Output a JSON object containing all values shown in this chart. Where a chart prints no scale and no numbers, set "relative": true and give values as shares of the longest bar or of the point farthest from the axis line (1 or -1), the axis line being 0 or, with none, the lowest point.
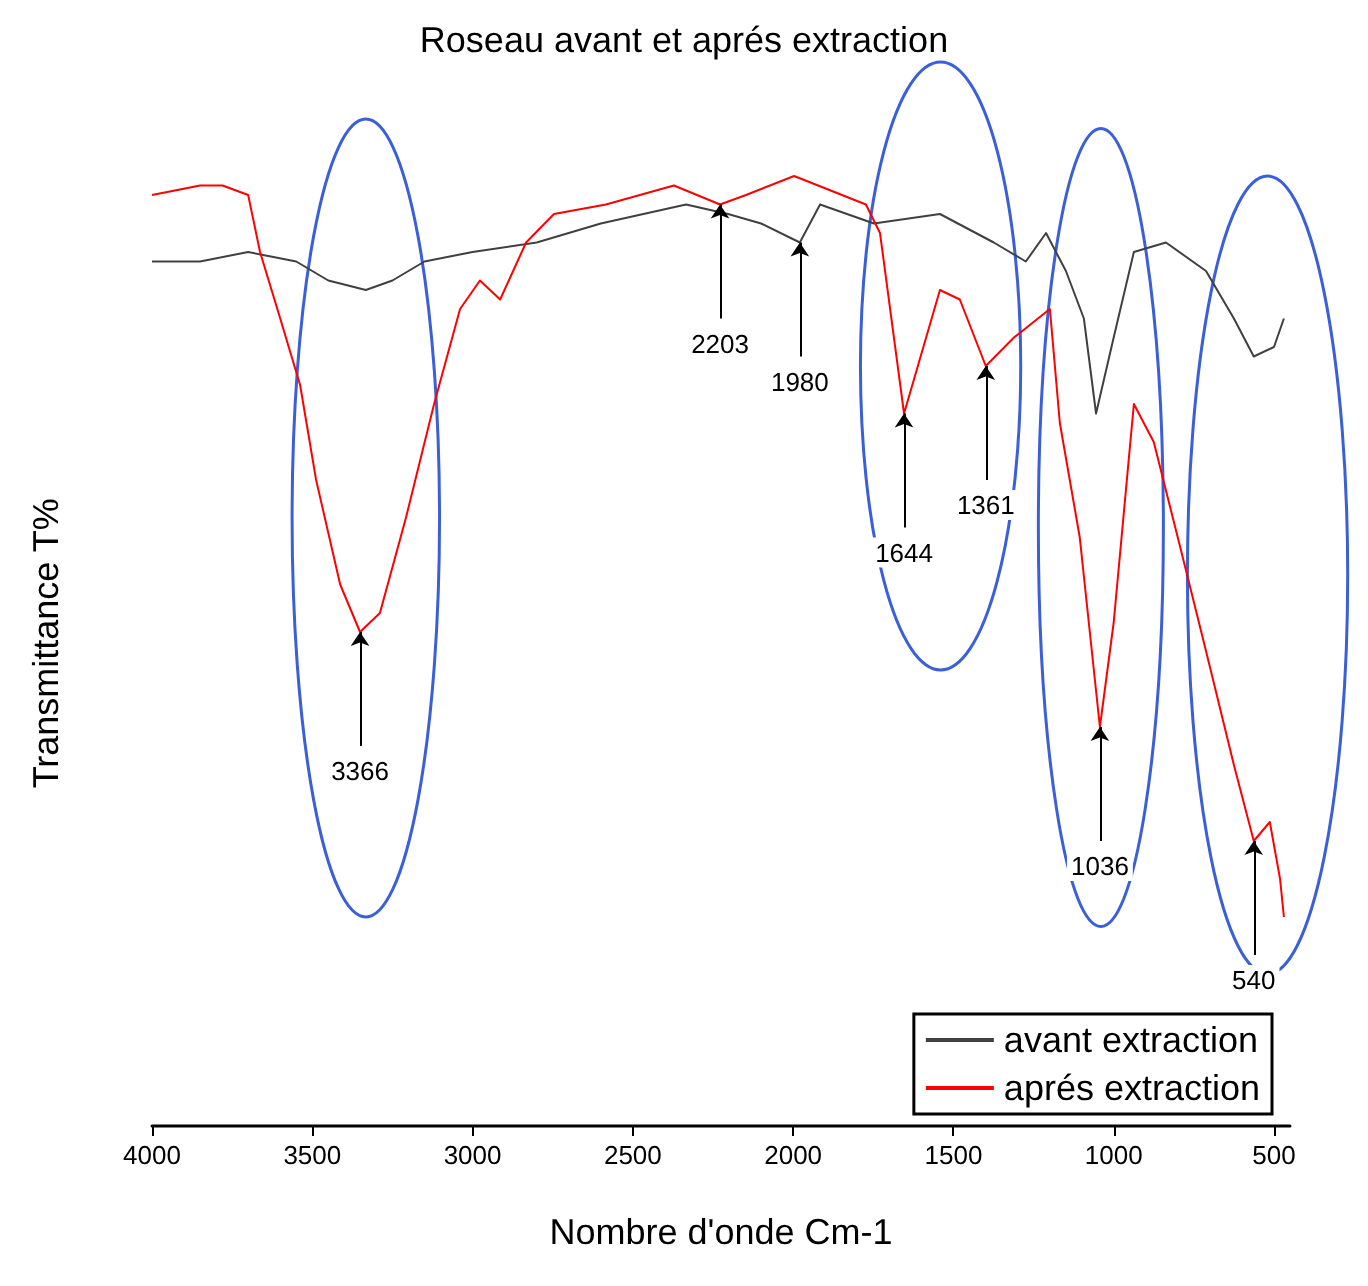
{
  "chart_data": {
    "type": "line",
    "title": "Roseau avant et aprés extraction",
    "xlabel": "Nombre d'onde Cm-1",
    "ylabel": "Transmittance T%",
    "relative": true,
    "xlim": [
      4000,
      450
    ],
    "xticks": [
      4000,
      3500,
      3000,
      2500,
      2000,
      1500,
      1000,
      500
    ],
    "series": [
      {
        "name": "avant extraction",
        "color": "#404040",
        "x": [
          4000,
          3850,
          3700,
          3550,
          3450,
          3333,
          3250,
          3150,
          3000,
          2800,
          2600,
          2334,
          2203,
          2100,
          1979,
          1916,
          1748,
          1542,
          1374,
          1274,
          1211,
          1149,
          1093,
          1055,
          1000,
          937,
          837,
          712,
          625,
          563,
          500,
          469
        ],
        "values": [
          0.91,
          0.91,
          0.92,
          0.91,
          0.89,
          0.88,
          0.89,
          0.91,
          0.92,
          0.93,
          0.95,
          0.97,
          0.96,
          0.95,
          0.93,
          0.97,
          0.95,
          0.96,
          0.93,
          0.91,
          0.94,
          0.9,
          0.85,
          0.75,
          0.83,
          0.92,
          0.93,
          0.9,
          0.85,
          0.81,
          0.82,
          0.85
        ]
      },
      {
        "name": "aprés extraction",
        "color": "#ff0000",
        "x": [
          4000,
          3850,
          3780,
          3700,
          3663,
          3600,
          3538,
          3488,
          3413,
          3351,
          3289,
          3208,
          3120,
          3039,
          2977,
          2914,
          2833,
          2746,
          2584,
          2372,
          2228,
          2147,
          1997,
          1773,
          1729,
          1654,
          1542,
          1480,
          1399,
          1311,
          1199,
          1168,
          1106,
          1043,
          1000,
          937,
          875,
          793,
          712,
          625,
          563,
          513,
          481,
          469
        ],
        "values": [
          0.98,
          0.99,
          0.99,
          0.98,
          0.92,
          0.85,
          0.78,
          0.68,
          0.57,
          0.52,
          0.54,
          0.64,
          0.76,
          0.86,
          0.89,
          0.87,
          0.93,
          0.96,
          0.97,
          0.99,
          0.97,
          0.98,
          1.0,
          0.97,
          0.94,
          0.75,
          0.88,
          0.87,
          0.8,
          0.83,
          0.86,
          0.74,
          0.62,
          0.42,
          0.53,
          0.76,
          0.72,
          0.61,
          0.5,
          0.38,
          0.3,
          0.32,
          0.26,
          0.22
        ]
      }
    ],
    "annotations": [
      {
        "text": "3366",
        "x": 3351,
        "y": 0.52
      },
      {
        "text": "2203",
        "x": 2228,
        "y": 0.97
      },
      {
        "text": "1980",
        "x": 1979,
        "y": 0.93
      },
      {
        "text": "1644",
        "x": 1654,
        "y": 0.75
      },
      {
        "text": "1361",
        "x": 1399,
        "y": 0.8
      },
      {
        "text": "1036",
        "x": 1043,
        "y": 0.42
      },
      {
        "text": "540",
        "x": 563,
        "y": 0.3
      }
    ],
    "legend": "bottom right",
    "grid": false,
    "marker": "none",
    "line_style": "solid"
  }
}
